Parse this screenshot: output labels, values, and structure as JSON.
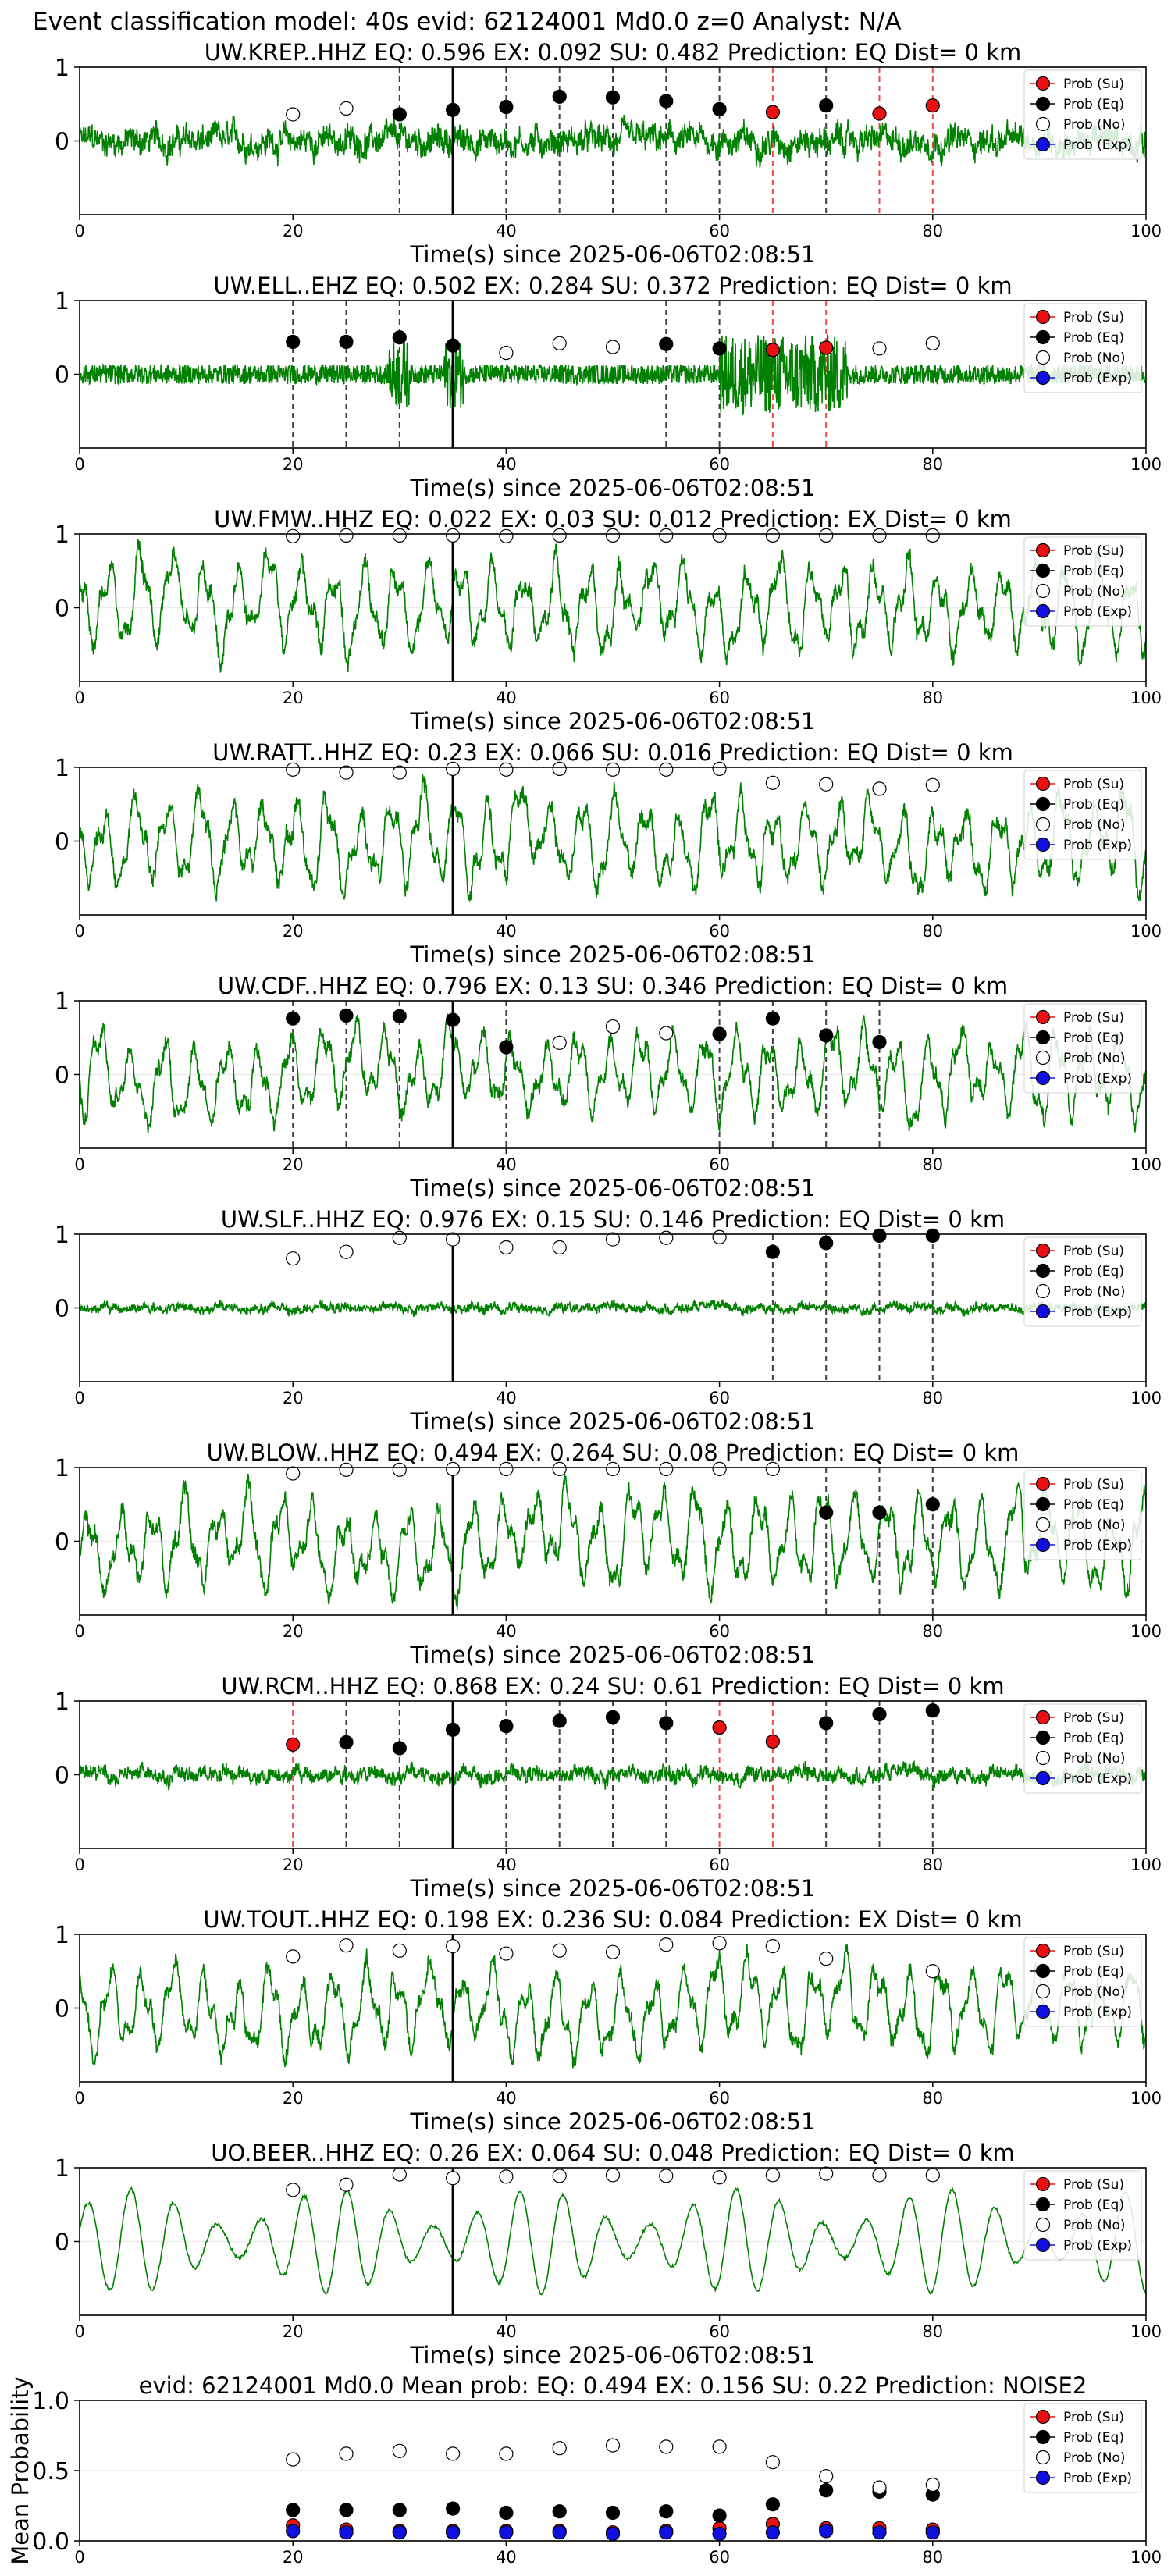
{
  "suptitle": "Event classification model: 40s evid: 62124001 Md0.0 z=0 Analyst: N/A",
  "xlabel": "Time(s) since 2025-06-06T02:08:51",
  "legend": [
    "Prob (Su)",
    "Prob (Eq)",
    "Prob (No)",
    "Prob (Exp)"
  ],
  "colors": {
    "trace": "#008000",
    "su": "#e81010",
    "eq": "#000000",
    "no": "#ffffff",
    "exp": "#1010e0",
    "pick": "#000000"
  },
  "chart_data": [
    {
      "type": "line",
      "title": "UW.KREP..HHZ   EQ: 0.596  EX: 0.092  SU: 0.482   Prediction: EQ    Dist= 0 km",
      "xlim": [
        0,
        100
      ],
      "ylim": [
        -1,
        1
      ],
      "xticks": [
        0,
        20,
        40,
        60,
        80,
        100
      ],
      "yticks": [
        0,
        1
      ],
      "pick_time": 35,
      "waveform_amplitude": 0.35,
      "waveform_style": "noise",
      "markers": [
        {
          "t": 20,
          "p": 0.36,
          "c": "no"
        },
        {
          "t": 25,
          "p": 0.44,
          "c": "no"
        },
        {
          "t": 30,
          "p": 0.36,
          "c": "eq"
        },
        {
          "t": 35,
          "p": 0.42,
          "c": "eq"
        },
        {
          "t": 40,
          "p": 0.46,
          "c": "eq"
        },
        {
          "t": 45,
          "p": 0.6,
          "c": "eq"
        },
        {
          "t": 50,
          "p": 0.59,
          "c": "eq"
        },
        {
          "t": 55,
          "p": 0.54,
          "c": "eq"
        },
        {
          "t": 60,
          "p": 0.43,
          "c": "eq"
        },
        {
          "t": 65,
          "p": 0.39,
          "c": "su"
        },
        {
          "t": 70,
          "p": 0.48,
          "c": "eq"
        },
        {
          "t": 75,
          "p": 0.37,
          "c": "su"
        },
        {
          "t": 80,
          "p": 0.48,
          "c": "su"
        }
      ]
    },
    {
      "type": "line",
      "title": "UW.ELL..EHZ   EQ: 0.502  EX: 0.284  SU: 0.372   Prediction: EQ    Dist= 0 km",
      "xlim": [
        0,
        100
      ],
      "ylim": [
        -1,
        1
      ],
      "xticks": [
        0,
        20,
        40,
        60,
        80,
        100
      ],
      "yticks": [
        0,
        1
      ],
      "pick_time": 35,
      "waveform_amplitude": 0.35,
      "waveform_style": "bursty",
      "markers": [
        {
          "t": 20,
          "p": 0.44,
          "c": "eq"
        },
        {
          "t": 25,
          "p": 0.44,
          "c": "eq"
        },
        {
          "t": 30,
          "p": 0.5,
          "c": "eq"
        },
        {
          "t": 35,
          "p": 0.39,
          "c": "eq"
        },
        {
          "t": 40,
          "p": 0.29,
          "c": "no"
        },
        {
          "t": 45,
          "p": 0.42,
          "c": "no"
        },
        {
          "t": 50,
          "p": 0.37,
          "c": "no"
        },
        {
          "t": 55,
          "p": 0.41,
          "c": "eq"
        },
        {
          "t": 60,
          "p": 0.35,
          "c": "eq"
        },
        {
          "t": 65,
          "p": 0.33,
          "c": "su"
        },
        {
          "t": 70,
          "p": 0.36,
          "c": "su"
        },
        {
          "t": 75,
          "p": 0.35,
          "c": "no"
        },
        {
          "t": 80,
          "p": 0.42,
          "c": "no"
        }
      ]
    },
    {
      "type": "line",
      "title": "UW.FMW..HHZ   EQ: 0.022  EX: 0.03  SU: 0.012   Prediction: EX    Dist= 0 km",
      "xlim": [
        0,
        100
      ],
      "ylim": [
        -1,
        1
      ],
      "xticks": [
        0,
        20,
        40,
        60,
        80,
        100
      ],
      "yticks": [
        0,
        1
      ],
      "pick_time": 35,
      "waveform_amplitude": 0.6,
      "waveform_style": "wave",
      "markers": [
        {
          "t": 20,
          "p": 0.97,
          "c": "no"
        },
        {
          "t": 25,
          "p": 0.98,
          "c": "no"
        },
        {
          "t": 30,
          "p": 0.98,
          "c": "no"
        },
        {
          "t": 35,
          "p": 0.98,
          "c": "no"
        },
        {
          "t": 40,
          "p": 0.97,
          "c": "no"
        },
        {
          "t": 45,
          "p": 0.98,
          "c": "no"
        },
        {
          "t": 50,
          "p": 0.98,
          "c": "no"
        },
        {
          "t": 55,
          "p": 0.98,
          "c": "no"
        },
        {
          "t": 60,
          "p": 0.98,
          "c": "no"
        },
        {
          "t": 65,
          "p": 0.98,
          "c": "no"
        },
        {
          "t": 70,
          "p": 0.98,
          "c": "no"
        },
        {
          "t": 75,
          "p": 0.98,
          "c": "no"
        },
        {
          "t": 80,
          "p": 0.98,
          "c": "no"
        }
      ]
    },
    {
      "type": "line",
      "title": "UW.RATT..HHZ   EQ: 0.23  EX: 0.066  SU: 0.016   Prediction: EQ    Dist= 0 km",
      "xlim": [
        0,
        100
      ],
      "ylim": [
        -1,
        1
      ],
      "xticks": [
        0,
        20,
        40,
        60,
        80,
        100
      ],
      "yticks": [
        0,
        1
      ],
      "pick_time": 35,
      "waveform_amplitude": 0.6,
      "waveform_style": "wave",
      "markers": [
        {
          "t": 20,
          "p": 0.97,
          "c": "no"
        },
        {
          "t": 25,
          "p": 0.93,
          "c": "no"
        },
        {
          "t": 30,
          "p": 0.93,
          "c": "no"
        },
        {
          "t": 35,
          "p": 0.98,
          "c": "no"
        },
        {
          "t": 40,
          "p": 0.97,
          "c": "no"
        },
        {
          "t": 45,
          "p": 0.98,
          "c": "no"
        },
        {
          "t": 50,
          "p": 0.97,
          "c": "no"
        },
        {
          "t": 55,
          "p": 0.97,
          "c": "no"
        },
        {
          "t": 60,
          "p": 0.98,
          "c": "no"
        },
        {
          "t": 65,
          "p": 0.79,
          "c": "no"
        },
        {
          "t": 70,
          "p": 0.77,
          "c": "no"
        },
        {
          "t": 75,
          "p": 0.71,
          "c": "no"
        },
        {
          "t": 80,
          "p": 0.76,
          "c": "no"
        }
      ]
    },
    {
      "type": "line",
      "title": "UW.CDF..HHZ   EQ: 0.796  EX: 0.13  SU: 0.346   Prediction: EQ    Dist= 0 km",
      "xlim": [
        0,
        100
      ],
      "ylim": [
        -1,
        1
      ],
      "xticks": [
        0,
        20,
        40,
        60,
        80,
        100
      ],
      "yticks": [
        0,
        1
      ],
      "pick_time": 35,
      "waveform_amplitude": 0.55,
      "waveform_style": "wave",
      "markers": [
        {
          "t": 20,
          "p": 0.76,
          "c": "eq"
        },
        {
          "t": 25,
          "p": 0.8,
          "c": "eq"
        },
        {
          "t": 30,
          "p": 0.79,
          "c": "eq"
        },
        {
          "t": 35,
          "p": 0.74,
          "c": "eq"
        },
        {
          "t": 40,
          "p": 0.37,
          "c": "eq"
        },
        {
          "t": 45,
          "p": 0.43,
          "c": "no"
        },
        {
          "t": 50,
          "p": 0.65,
          "c": "no"
        },
        {
          "t": 55,
          "p": 0.56,
          "c": "no"
        },
        {
          "t": 60,
          "p": 0.55,
          "c": "eq"
        },
        {
          "t": 65,
          "p": 0.76,
          "c": "eq"
        },
        {
          "t": 70,
          "p": 0.53,
          "c": "eq"
        },
        {
          "t": 75,
          "p": 0.44,
          "c": "eq"
        }
      ]
    },
    {
      "type": "line",
      "title": "UW.SLF..HHZ   EQ: 0.976  EX: 0.15  SU: 0.146   Prediction: EQ    Dist= 0 km",
      "xlim": [
        0,
        100
      ],
      "ylim": [
        -1,
        1
      ],
      "xticks": [
        0,
        20,
        40,
        60,
        80,
        100
      ],
      "yticks": [
        0,
        1
      ],
      "pick_time": 35,
      "waveform_amplitude": 0.12,
      "waveform_style": "noise",
      "markers": [
        {
          "t": 20,
          "p": 0.67,
          "c": "no"
        },
        {
          "t": 25,
          "p": 0.76,
          "c": "no"
        },
        {
          "t": 30,
          "p": 0.95,
          "c": "no"
        },
        {
          "t": 35,
          "p": 0.93,
          "c": "no"
        },
        {
          "t": 40,
          "p": 0.82,
          "c": "no"
        },
        {
          "t": 45,
          "p": 0.82,
          "c": "no"
        },
        {
          "t": 50,
          "p": 0.93,
          "c": "no"
        },
        {
          "t": 55,
          "p": 0.95,
          "c": "no"
        },
        {
          "t": 60,
          "p": 0.96,
          "c": "no"
        },
        {
          "t": 65,
          "p": 0.76,
          "c": "eq"
        },
        {
          "t": 70,
          "p": 0.88,
          "c": "eq"
        },
        {
          "t": 75,
          "p": 0.98,
          "c": "eq"
        },
        {
          "t": 80,
          "p": 0.98,
          "c": "eq"
        }
      ]
    },
    {
      "type": "line",
      "title": "UW.BLOW..HHZ   EQ: 0.494  EX: 0.264  SU: 0.08   Prediction: EQ    Dist= 0 km",
      "xlim": [
        0,
        100
      ],
      "ylim": [
        -1,
        1
      ],
      "xticks": [
        0,
        20,
        40,
        60,
        80,
        100
      ],
      "yticks": [
        0,
        1
      ],
      "pick_time": 35,
      "waveform_amplitude": 0.6,
      "waveform_style": "wave",
      "markers": [
        {
          "t": 20,
          "p": 0.92,
          "c": "no"
        },
        {
          "t": 25,
          "p": 0.97,
          "c": "no"
        },
        {
          "t": 30,
          "p": 0.97,
          "c": "no"
        },
        {
          "t": 35,
          "p": 0.98,
          "c": "no"
        },
        {
          "t": 40,
          "p": 0.98,
          "c": "no"
        },
        {
          "t": 45,
          "p": 0.98,
          "c": "no"
        },
        {
          "t": 50,
          "p": 0.98,
          "c": "no"
        },
        {
          "t": 55,
          "p": 0.98,
          "c": "no"
        },
        {
          "t": 60,
          "p": 0.98,
          "c": "no"
        },
        {
          "t": 65,
          "p": 0.98,
          "c": "no"
        },
        {
          "t": 70,
          "p": 0.39,
          "c": "eq"
        },
        {
          "t": 75,
          "p": 0.39,
          "c": "eq"
        },
        {
          "t": 80,
          "p": 0.5,
          "c": "eq"
        }
      ]
    },
    {
      "type": "line",
      "title": "UW.RCM..HHZ   EQ: 0.868  EX: 0.24  SU: 0.61   Prediction: EQ    Dist= 0 km",
      "xlim": [
        0,
        100
      ],
      "ylim": [
        -1,
        1
      ],
      "xticks": [
        0,
        20,
        40,
        60,
        80,
        100
      ],
      "yticks": [
        0,
        1
      ],
      "pick_time": 35,
      "waveform_amplitude": 0.2,
      "waveform_style": "noise",
      "markers": [
        {
          "t": 20,
          "p": 0.41,
          "c": "su"
        },
        {
          "t": 25,
          "p": 0.44,
          "c": "eq"
        },
        {
          "t": 30,
          "p": 0.36,
          "c": "eq"
        },
        {
          "t": 35,
          "p": 0.61,
          "c": "eq"
        },
        {
          "t": 40,
          "p": 0.66,
          "c": "eq"
        },
        {
          "t": 45,
          "p": 0.73,
          "c": "eq"
        },
        {
          "t": 50,
          "p": 0.78,
          "c": "eq"
        },
        {
          "t": 55,
          "p": 0.7,
          "c": "eq"
        },
        {
          "t": 60,
          "p": 0.64,
          "c": "su"
        },
        {
          "t": 65,
          "p": 0.45,
          "c": "su"
        },
        {
          "t": 70,
          "p": 0.7,
          "c": "eq"
        },
        {
          "t": 75,
          "p": 0.82,
          "c": "eq"
        },
        {
          "t": 80,
          "p": 0.87,
          "c": "eq"
        }
      ]
    },
    {
      "type": "line",
      "title": "UW.TOUT..HHZ   EQ: 0.198  EX: 0.236  SU: 0.084   Prediction: EX    Dist= 0 km",
      "xlim": [
        0,
        100
      ],
      "ylim": [
        -1,
        1
      ],
      "xticks": [
        0,
        20,
        40,
        60,
        80,
        100
      ],
      "yticks": [
        0,
        1
      ],
      "pick_time": 35,
      "waveform_amplitude": 0.55,
      "waveform_style": "wave",
      "markers": [
        {
          "t": 20,
          "p": 0.7,
          "c": "no"
        },
        {
          "t": 25,
          "p": 0.85,
          "c": "no"
        },
        {
          "t": 30,
          "p": 0.78,
          "c": "no"
        },
        {
          "t": 35,
          "p": 0.84,
          "c": "no"
        },
        {
          "t": 40,
          "p": 0.74,
          "c": "no"
        },
        {
          "t": 45,
          "p": 0.78,
          "c": "no"
        },
        {
          "t": 50,
          "p": 0.76,
          "c": "no"
        },
        {
          "t": 55,
          "p": 0.86,
          "c": "no"
        },
        {
          "t": 60,
          "p": 0.88,
          "c": "no"
        },
        {
          "t": 65,
          "p": 0.84,
          "c": "no"
        },
        {
          "t": 70,
          "p": 0.67,
          "c": "no"
        },
        {
          "t": 80,
          "p": 0.5,
          "c": "no"
        }
      ]
    },
    {
      "type": "line",
      "title": "UO.BEER..HHZ   EQ: 0.26  EX: 0.064  SU: 0.048   Prediction: EQ    Dist= 0 km",
      "xlim": [
        0,
        100
      ],
      "ylim": [
        -1,
        1
      ],
      "xticks": [
        0,
        20,
        40,
        60,
        80,
        100
      ],
      "yticks": [
        0,
        1
      ],
      "pick_time": 35,
      "waveform_amplitude": 0.75,
      "waveform_style": "sine",
      "markers": [
        {
          "t": 20,
          "p": 0.7,
          "c": "no"
        },
        {
          "t": 25,
          "p": 0.77,
          "c": "no"
        },
        {
          "t": 30,
          "p": 0.91,
          "c": "no"
        },
        {
          "t": 35,
          "p": 0.86,
          "c": "no"
        },
        {
          "t": 40,
          "p": 0.88,
          "c": "no"
        },
        {
          "t": 45,
          "p": 0.89,
          "c": "no"
        },
        {
          "t": 50,
          "p": 0.9,
          "c": "no"
        },
        {
          "t": 55,
          "p": 0.89,
          "c": "no"
        },
        {
          "t": 60,
          "p": 0.87,
          "c": "no"
        },
        {
          "t": 65,
          "p": 0.9,
          "c": "no"
        },
        {
          "t": 70,
          "p": 0.92,
          "c": "no"
        },
        {
          "t": 75,
          "p": 0.9,
          "c": "no"
        },
        {
          "t": 80,
          "p": 0.9,
          "c": "no"
        }
      ]
    },
    {
      "type": "scatter",
      "title": "evid: 62124001  Md0.0   Mean prob:   EQ: 0.494  EX: 0.156  SU: 0.22   Prediction: NOISE2",
      "ylabel": "Mean Probability",
      "xlim": [
        0,
        100
      ],
      "ylim": [
        0,
        1
      ],
      "xticks": [
        0,
        20,
        40,
        60,
        80,
        100
      ],
      "yticks": [
        0.0,
        0.5,
        1.0
      ],
      "ytick_labels": [
        "0.0",
        "0.5",
        "1.0"
      ],
      "x": [
        20,
        25,
        30,
        35,
        40,
        45,
        50,
        55,
        60,
        65,
        70,
        75,
        80
      ],
      "series": [
        {
          "name": "Prob (Su)",
          "c": "su",
          "values": [
            0.11,
            0.08,
            0.07,
            0.07,
            0.07,
            0.07,
            0.06,
            0.07,
            0.09,
            0.12,
            0.09,
            0.09,
            0.08
          ]
        },
        {
          "name": "Prob (Eq)",
          "c": "eq",
          "values": [
            0.22,
            0.22,
            0.22,
            0.23,
            0.2,
            0.21,
            0.2,
            0.21,
            0.18,
            0.26,
            0.36,
            0.35,
            0.33
          ]
        },
        {
          "name": "Prob (No)",
          "c": "no",
          "values": [
            0.58,
            0.62,
            0.64,
            0.62,
            0.62,
            0.66,
            0.68,
            0.67,
            0.67,
            0.56,
            0.46,
            0.38,
            0.4
          ]
        },
        {
          "name": "Prob (Exp)",
          "c": "exp",
          "values": [
            0.07,
            0.06,
            0.06,
            0.06,
            0.06,
            0.06,
            0.05,
            0.06,
            0.05,
            0.06,
            0.07,
            0.06,
            0.06
          ]
        }
      ]
    }
  ]
}
